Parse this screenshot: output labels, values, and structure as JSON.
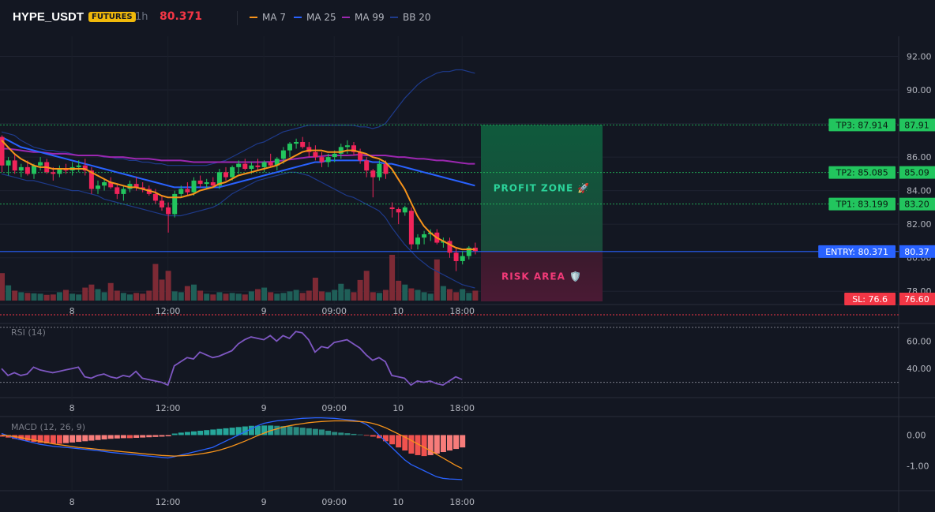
{
  "header": {
    "symbol": "HYPE_USDT",
    "badge": "FUTURES",
    "interval": "1h",
    "last_price": "80.371",
    "legend": [
      {
        "label": "MA 7",
        "color": "#f7931a"
      },
      {
        "label": "MA 25",
        "color": "#2962ff"
      },
      {
        "label": "MA 99",
        "color": "#9c27b0"
      },
      {
        "label": "BB 20",
        "color": "#1e3a8a"
      }
    ]
  },
  "colors": {
    "up": "#26a69a",
    "down": "#ef5350",
    "up_body": "#22c55e",
    "down_body": "#f0245a",
    "ma7": "#f7931a",
    "ma25": "#2962ff",
    "ma99": "#9c27b0",
    "bb": "#1e3a8a",
    "rsi": "#7e57c2",
    "macd": "#2962ff",
    "signal": "#f7931a"
  },
  "chart_data": [
    {
      "type": "candlestick",
      "panel": "price",
      "y_ticks": [
        "92.00",
        "90.00",
        "88.00",
        "86.00",
        "84.00",
        "82.00",
        "80.00",
        "78.00"
      ],
      "y_tick_values": [
        92,
        90,
        88,
        86,
        84,
        82,
        80,
        78
      ],
      "ylim": [
        77.4,
        93.2
      ],
      "x_labels": [
        "8",
        "12:00",
        "9",
        "09:00",
        "10",
        "18:00"
      ],
      "x_label_index": [
        11,
        26,
        41,
        52,
        62,
        72
      ],
      "n_bars": 78,
      "ohlc": [
        [
          87.2,
          87.3,
          85.1,
          85.5
        ],
        [
          85.5,
          86.0,
          84.9,
          85.8
        ],
        [
          85.8,
          86.2,
          85.0,
          85.2
        ],
        [
          85.2,
          85.6,
          84.8,
          85.4
        ],
        [
          85.4,
          85.8,
          84.9,
          85.0
        ],
        [
          85.0,
          85.6,
          84.7,
          85.5
        ],
        [
          85.5,
          86.0,
          85.2,
          85.7
        ],
        [
          85.7,
          85.9,
          85.0,
          85.1
        ],
        [
          85.1,
          85.4,
          84.6,
          85.0
        ],
        [
          85.0,
          85.5,
          84.8,
          85.3
        ],
        [
          85.3,
          85.6,
          85.0,
          85.2
        ],
        [
          85.2,
          85.7,
          84.9,
          85.4
        ],
        [
          85.4,
          85.8,
          85.1,
          85.5
        ],
        [
          85.5,
          85.9,
          84.9,
          85.2
        ],
        [
          85.2,
          85.4,
          83.8,
          84.1
        ],
        [
          84.1,
          84.6,
          83.8,
          84.3
        ],
        [
          84.3,
          84.7,
          84.0,
          84.5
        ],
        [
          84.5,
          84.8,
          84.1,
          84.2
        ],
        [
          84.2,
          84.4,
          83.5,
          83.8
        ],
        [
          83.8,
          84.3,
          83.4,
          84.1
        ],
        [
          84.1,
          84.6,
          83.9,
          84.4
        ],
        [
          84.4,
          84.8,
          84.0,
          84.2
        ],
        [
          84.2,
          84.5,
          83.9,
          84.1
        ],
        [
          84.1,
          84.3,
          83.7,
          83.8
        ],
        [
          83.8,
          84.1,
          83.2,
          83.4
        ],
        [
          83.4,
          83.7,
          82.8,
          83.0
        ],
        [
          83.0,
          83.3,
          81.5,
          82.6
        ],
        [
          82.6,
          84.0,
          82.4,
          83.8
        ],
        [
          83.8,
          84.3,
          83.6,
          84.1
        ],
        [
          84.1,
          84.5,
          83.7,
          83.9
        ],
        [
          83.9,
          84.8,
          83.7,
          84.6
        ],
        [
          84.6,
          84.9,
          84.2,
          84.4
        ],
        [
          84.4,
          84.7,
          84.1,
          84.5
        ],
        [
          84.5,
          84.8,
          84.2,
          84.3
        ],
        [
          84.3,
          85.3,
          84.1,
          85.1
        ],
        [
          85.1,
          85.4,
          84.6,
          84.8
        ],
        [
          84.8,
          85.5,
          84.6,
          85.4
        ],
        [
          85.4,
          85.8,
          85.0,
          85.6
        ],
        [
          85.6,
          85.9,
          85.2,
          85.3
        ],
        [
          85.3,
          85.7,
          85.0,
          85.5
        ],
        [
          85.5,
          85.9,
          85.2,
          85.4
        ],
        [
          85.4,
          85.8,
          85.1,
          85.7
        ],
        [
          85.7,
          86.2,
          85.4,
          85.5
        ],
        [
          85.5,
          86.0,
          85.2,
          85.9
        ],
        [
          85.9,
          86.6,
          85.6,
          86.4
        ],
        [
          86.4,
          86.9,
          86.0,
          86.8
        ],
        [
          86.8,
          87.1,
          86.5,
          86.9
        ],
        [
          86.9,
          87.2,
          86.5,
          86.6
        ],
        [
          86.6,
          86.9,
          86.0,
          86.3
        ],
        [
          86.3,
          86.7,
          85.8,
          86.0
        ],
        [
          86.0,
          86.3,
          85.4,
          85.7
        ],
        [
          85.7,
          86.2,
          85.4,
          86.0
        ],
        [
          86.0,
          86.4,
          85.7,
          86.2
        ],
        [
          86.2,
          86.8,
          85.9,
          86.6
        ],
        [
          86.6,
          87.0,
          86.2,
          86.7
        ],
        [
          86.7,
          86.9,
          86.1,
          86.3
        ],
        [
          86.3,
          86.5,
          85.6,
          85.8
        ],
        [
          85.8,
          86.0,
          84.8,
          85.2
        ],
        [
          85.2,
          85.3,
          83.6,
          84.8
        ],
        [
          84.8,
          85.8,
          84.6,
          85.6
        ],
        [
          85.6,
          85.8,
          84.7,
          85.0
        ],
        [
          83.0,
          83.3,
          82.4,
          82.9
        ],
        [
          82.9,
          83.0,
          82.0,
          82.7
        ],
        [
          82.7,
          83.1,
          82.5,
          83.0
        ],
        [
          82.8,
          83.0,
          80.5,
          80.8
        ],
        [
          80.8,
          81.4,
          80.5,
          81.2
        ],
        [
          81.2,
          81.6,
          80.8,
          81.4
        ],
        [
          81.4,
          81.7,
          81.0,
          81.5
        ],
        [
          81.5,
          81.7,
          80.8,
          80.9
        ],
        [
          80.9,
          81.2,
          80.6,
          81.0
        ],
        [
          81.0,
          81.2,
          80.0,
          80.3
        ],
        [
          80.3,
          80.6,
          79.2,
          79.8
        ],
        [
          79.8,
          80.4,
          79.6,
          80.1
        ],
        [
          80.1,
          80.7,
          79.9,
          80.6
        ],
        [
          80.6,
          80.9,
          80.2,
          80.4
        ]
      ],
      "volume_rel": [
        0.72,
        0.4,
        0.26,
        0.22,
        0.2,
        0.19,
        0.18,
        0.15,
        0.16,
        0.22,
        0.28,
        0.18,
        0.16,
        0.34,
        0.42,
        0.3,
        0.22,
        0.46,
        0.26,
        0.2,
        0.16,
        0.2,
        0.18,
        0.26,
        0.96,
        0.55,
        0.78,
        0.24,
        0.22,
        0.38,
        0.42,
        0.26,
        0.18,
        0.16,
        0.22,
        0.18,
        0.2,
        0.18,
        0.16,
        0.24,
        0.3,
        0.34,
        0.22,
        0.18,
        0.2,
        0.24,
        0.28,
        0.2,
        0.26,
        0.6,
        0.24,
        0.22,
        0.28,
        0.44,
        0.3,
        0.22,
        0.54,
        0.78,
        0.22,
        0.2,
        0.28,
        1.2,
        0.52,
        0.42,
        0.32,
        0.28,
        0.22,
        0.18,
        1.08,
        0.38,
        0.3,
        0.22,
        0.3,
        0.2,
        0.26
      ],
      "ma7": [
        87.0,
        86.6,
        86.2,
        85.9,
        85.7,
        85.5,
        85.4,
        85.4,
        85.3,
        85.3,
        85.3,
        85.3,
        85.3,
        85.3,
        85.1,
        84.9,
        84.7,
        84.5,
        84.4,
        84.3,
        84.2,
        84.2,
        84.1,
        84.0,
        83.9,
        83.7,
        83.6,
        83.6,
        83.6,
        83.7,
        83.8,
        84.0,
        84.1,
        84.2,
        84.4,
        84.5,
        84.7,
        84.9,
        85.0,
        85.1,
        85.2,
        85.3,
        85.4,
        85.5,
        85.7,
        85.9,
        86.1,
        86.3,
        86.4,
        86.4,
        86.4,
        86.3,
        86.3,
        86.3,
        86.4,
        86.4,
        86.3,
        86.2,
        86.0,
        85.9,
        85.7,
        85.3,
        84.7,
        84.1,
        83.3,
        82.5,
        81.9,
        81.5,
        81.2,
        81.0,
        80.8,
        80.6,
        80.5,
        80.5,
        80.5
      ],
      "ma25": [
        87.2,
        87.0,
        86.8,
        86.6,
        86.5,
        86.4,
        86.3,
        86.2,
        86.1,
        86.0,
        85.9,
        85.8,
        85.7,
        85.6,
        85.5,
        85.4,
        85.3,
        85.2,
        85.1,
        85.0,
        84.9,
        84.8,
        84.7,
        84.6,
        84.5,
        84.4,
        84.3,
        84.2,
        84.2,
        84.2,
        84.2,
        84.2,
        84.2,
        84.2,
        84.2,
        84.3,
        84.4,
        84.5,
        84.6,
        84.7,
        84.8,
        84.9,
        85.0,
        85.1,
        85.2,
        85.3,
        85.4,
        85.5,
        85.6,
        85.7,
        85.7,
        85.8,
        85.8,
        85.8,
        85.8,
        85.8,
        85.8,
        85.8,
        85.7,
        85.7,
        85.6,
        85.6,
        85.5,
        85.4,
        85.3,
        85.2,
        85.1,
        85.0,
        84.9,
        84.8,
        84.7,
        84.6,
        84.5,
        84.4,
        84.3
      ],
      "ma99": [
        86.5,
        86.5,
        86.45,
        86.4,
        86.35,
        86.3,
        86.3,
        86.25,
        86.2,
        86.2,
        86.2,
        86.15,
        86.1,
        86.1,
        86.1,
        86.1,
        86.05,
        86.0,
        86.0,
        86.0,
        85.95,
        85.9,
        85.9,
        85.9,
        85.85,
        85.8,
        85.8,
        85.8,
        85.8,
        85.75,
        85.7,
        85.7,
        85.7,
        85.7,
        85.7,
        85.7,
        85.7,
        85.7,
        85.7,
        85.7,
        85.7,
        85.7,
        85.72,
        85.75,
        85.8,
        85.85,
        85.9,
        85.95,
        86.0,
        86.02,
        86.05,
        86.1,
        86.1,
        86.1,
        86.1,
        86.12,
        86.15,
        86.1,
        86.1,
        86.1,
        86.1,
        86.05,
        86.0,
        86.0,
        85.95,
        85.9,
        85.9,
        85.85,
        85.8,
        85.8,
        85.75,
        85.7,
        85.65,
        85.6,
        85.6
      ],
      "bb_upper": [
        87.5,
        87.4,
        87.3,
        87.0,
        86.8,
        86.6,
        86.5,
        86.4,
        86.4,
        86.3,
        86.3,
        86.2,
        86.1,
        86.1,
        86.1,
        86.1,
        86.0,
        86.0,
        85.9,
        85.9,
        85.8,
        85.8,
        85.7,
        85.7,
        85.6,
        85.6,
        85.5,
        85.5,
        85.5,
        85.5,
        85.5,
        85.5,
        85.5,
        85.6,
        85.7,
        85.8,
        86.0,
        86.2,
        86.4,
        86.6,
        86.8,
        86.9,
        87.1,
        87.3,
        87.5,
        87.6,
        87.7,
        87.8,
        87.9,
        87.9,
        87.9,
        87.9,
        87.9,
        87.9,
        87.9,
        87.9,
        87.8,
        87.8,
        87.7,
        87.8,
        88.0,
        88.5,
        89.0,
        89.5,
        89.9,
        90.3,
        90.6,
        90.8,
        91.0,
        91.1,
        91.1,
        91.2,
        91.2,
        91.1,
        91.0
      ],
      "bb_lower": [
        85.0,
        84.9,
        84.8,
        84.7,
        84.6,
        84.6,
        84.5,
        84.4,
        84.3,
        84.2,
        84.1,
        84.0,
        84.0,
        83.9,
        83.8,
        83.7,
        83.5,
        83.4,
        83.3,
        83.2,
        83.1,
        83.0,
        82.9,
        82.8,
        82.7,
        82.6,
        82.5,
        82.5,
        82.5,
        82.6,
        82.7,
        82.8,
        82.9,
        83.0,
        83.2,
        83.5,
        83.8,
        84.0,
        84.2,
        84.4,
        84.6,
        84.7,
        84.8,
        84.9,
        85.0,
        85.1,
        85.1,
        85.0,
        84.9,
        84.7,
        84.5,
        84.3,
        84.1,
        83.9,
        83.7,
        83.6,
        83.4,
        83.2,
        83.0,
        82.8,
        82.4,
        81.8,
        81.3,
        80.8,
        80.4,
        80.0,
        79.7,
        79.4,
        79.2,
        79.0,
        78.8,
        78.6,
        78.4,
        78.3,
        78.2
      ]
    },
    {
      "type": "line",
      "panel": "rsi",
      "title": "RSI (14)",
      "y_ticks": [
        "60.00",
        "40.00"
      ],
      "y_tick_values": [
        60,
        40
      ],
      "ylim": [
        20,
        74
      ],
      "guides": [
        70,
        30
      ],
      "values": [
        40,
        35,
        37,
        35,
        36,
        41,
        39,
        38,
        37,
        38,
        39,
        40,
        41,
        34,
        33,
        35,
        36,
        34,
        33,
        35,
        34,
        38,
        33,
        32,
        31,
        30,
        28,
        42,
        45,
        48,
        47,
        52,
        50,
        48,
        49,
        51,
        53,
        58,
        61,
        63,
        62,
        61,
        64,
        60,
        64,
        62,
        67,
        66,
        61,
        52,
        56,
        55,
        59,
        60,
        61,
        58,
        55,
        50,
        46,
        48,
        45,
        35,
        34,
        33,
        28,
        31,
        30,
        31,
        29,
        28,
        31,
        34,
        32
      ]
    },
    {
      "type": "bar",
      "panel": "macd",
      "title": "MACD (12, 26, 9)",
      "y_ticks": [
        "0.00",
        "-1.00"
      ],
      "y_tick_values": [
        0,
        -1
      ],
      "ylim": [
        -1.75,
        0.6
      ],
      "histogram": [
        -0.05,
        -0.08,
        -0.12,
        -0.15,
        -0.18,
        -0.22,
        -0.25,
        -0.27,
        -0.28,
        -0.28,
        -0.26,
        -0.24,
        -0.22,
        -0.2,
        -0.18,
        -0.16,
        -0.14,
        -0.12,
        -0.11,
        -0.1,
        -0.1,
        -0.09,
        -0.08,
        -0.07,
        -0.06,
        -0.05,
        -0.04,
        0.05,
        0.08,
        0.1,
        0.12,
        0.14,
        0.16,
        0.18,
        0.2,
        0.22,
        0.24,
        0.26,
        0.28,
        0.3,
        0.3,
        0.31,
        0.31,
        0.3,
        0.29,
        0.28,
        0.26,
        0.24,
        0.22,
        0.2,
        0.18,
        0.14,
        0.1,
        0.08,
        0.06,
        0.04,
        0.02,
        -0.02,
        -0.05,
        -0.1,
        -0.2,
        -0.3,
        -0.4,
        -0.5,
        -0.6,
        -0.65,
        -0.68,
        -0.65,
        -0.6,
        -0.55,
        -0.5,
        -0.45,
        -0.4
      ],
      "macd": [
        0.05,
        -0.02,
        -0.1,
        -0.15,
        -0.2,
        -0.25,
        -0.3,
        -0.33,
        -0.36,
        -0.38,
        -0.4,
        -0.42,
        -0.44,
        -0.46,
        -0.48,
        -0.5,
        -0.53,
        -0.56,
        -0.58,
        -0.6,
        -0.62,
        -0.64,
        -0.66,
        -0.68,
        -0.7,
        -0.72,
        -0.74,
        -0.7,
        -0.65,
        -0.6,
        -0.55,
        -0.5,
        -0.45,
        -0.4,
        -0.3,
        -0.2,
        -0.1,
        0.0,
        0.1,
        0.2,
        0.3,
        0.38,
        0.42,
        0.46,
        0.48,
        0.5,
        0.52,
        0.54,
        0.55,
        0.56,
        0.56,
        0.55,
        0.54,
        0.52,
        0.5,
        0.48,
        0.44,
        0.35,
        0.2,
        0.0,
        -0.2,
        -0.4,
        -0.6,
        -0.8,
        -0.95,
        -1.05,
        -1.15,
        -1.25,
        -1.35,
        -1.4,
        -1.42,
        -1.43,
        -1.44
      ],
      "signal": [
        0.0,
        -0.02,
        -0.05,
        -0.08,
        -0.12,
        -0.16,
        -0.2,
        -0.24,
        -0.28,
        -0.31,
        -0.34,
        -0.37,
        -0.4,
        -0.42,
        -0.44,
        -0.46,
        -0.48,
        -0.5,
        -0.52,
        -0.54,
        -0.56,
        -0.58,
        -0.6,
        -0.62,
        -0.64,
        -0.66,
        -0.67,
        -0.68,
        -0.67,
        -0.66,
        -0.64,
        -0.61,
        -0.58,
        -0.54,
        -0.49,
        -0.43,
        -0.36,
        -0.28,
        -0.2,
        -0.11,
        -0.02,
        0.06,
        0.14,
        0.2,
        0.26,
        0.3,
        0.34,
        0.37,
        0.4,
        0.42,
        0.44,
        0.45,
        0.46,
        0.46,
        0.46,
        0.45,
        0.44,
        0.42,
        0.38,
        0.32,
        0.24,
        0.14,
        0.04,
        -0.06,
        -0.17,
        -0.28,
        -0.39,
        -0.5,
        -0.62,
        -0.74,
        -0.86,
        -0.98,
        -1.08
      ]
    }
  ],
  "trade": {
    "tp3": {
      "label": "TP3: 87.914",
      "axis": "87.91",
      "value": 87.914
    },
    "tp2": {
      "label": "TP2: 85.085",
      "axis": "85.09",
      "value": 85.085
    },
    "tp1": {
      "label": "TP1: 83.199",
      "axis": "83.20",
      "value": 83.199
    },
    "entry": {
      "label": "ENTRY: 80.371",
      "axis": "80.37",
      "value": 80.371
    },
    "sl": {
      "label": "SL: 76.6",
      "axis": "76.60",
      "value": 76.6
    },
    "profit_zone_label": "PROFIT ZONE 🚀",
    "risk_area_label": "RISK AREA 🛡️"
  }
}
